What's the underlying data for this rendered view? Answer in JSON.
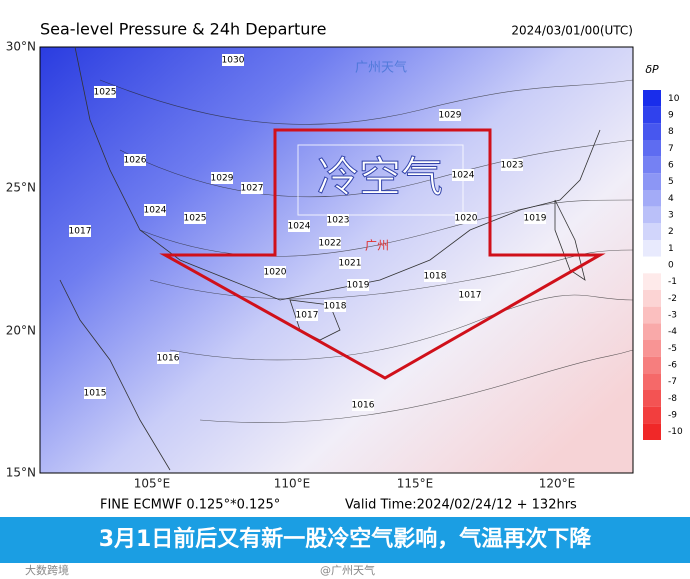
{
  "header": {
    "title": "Sea-level Pressure & 24h Departure",
    "date": "2024/03/01/00(UTC)"
  },
  "map": {
    "lat_labels": [
      "30°N",
      "25°N",
      "20°N",
      "15°N"
    ],
    "lon_labels": [
      "105°E",
      "110°E",
      "115°E",
      "120°E"
    ],
    "watermark": "广州天气",
    "arrow_text": "冷空气",
    "city_label": "广州",
    "isobar_labels": [
      1030,
      1025,
      1026,
      1029,
      1027,
      1024,
      1025,
      1024,
      1023,
      1022,
      1021,
      1020,
      1019,
      1018,
      1017,
      1018,
      1017,
      1016,
      1015,
      1016,
      1019,
      1023,
      1020,
      1024,
      1017,
      1029
    ]
  },
  "colorbar": {
    "title": "δP",
    "ticks": [
      10,
      9,
      8,
      7,
      6,
      5,
      4,
      3,
      2,
      1,
      0,
      -1,
      -2,
      -3,
      -4,
      -5,
      -6,
      -7,
      -8,
      -9,
      -10
    ]
  },
  "footer": {
    "model": "FINE ECMWF 0.125°*0.125°",
    "valid": "Valid Time:2024/02/24/12 + 132hrs"
  },
  "banner": {
    "text": "3月1日前后又有新一股冷空气影响，气温再次下降"
  },
  "bottom": {
    "left": "大数跨境",
    "right": "@广州天气"
  }
}
